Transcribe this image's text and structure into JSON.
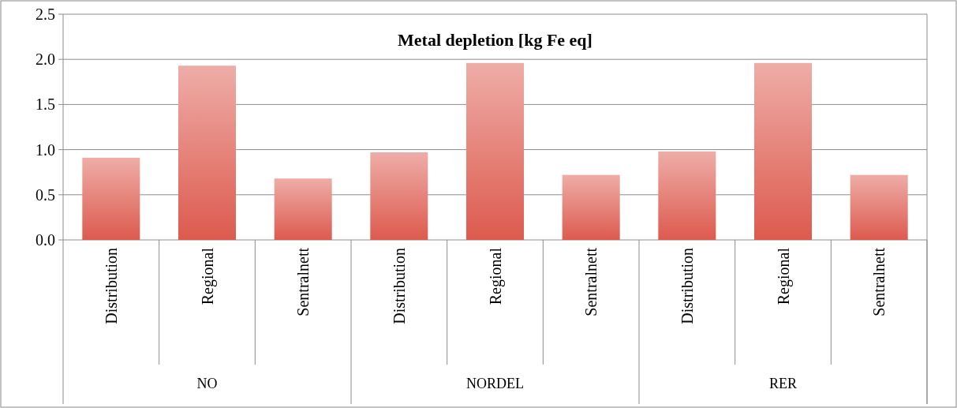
{
  "chart_data": {
    "type": "bar",
    "title": "Metal depletion [kg Fe eq]",
    "categories": [
      "Distribution",
      "Regional",
      "Sentralnett",
      "Distribution",
      "Regional",
      "Sentralnett",
      "Distribution",
      "Regional",
      "Sentralnett"
    ],
    "values": [
      0.91,
      1.93,
      0.68,
      0.97,
      1.96,
      0.72,
      0.98,
      1.96,
      0.72
    ],
    "color": "#dd5a4e",
    "ylim": [
      0,
      2.5
    ],
    "yticks": [
      {
        "value": 0,
        "label": "0.0"
      },
      {
        "value": 0.5,
        "label": "0.5"
      },
      {
        "value": 1,
        "label": "1.0"
      },
      {
        "value": 1.5,
        "label": "1.5"
      },
      {
        "value": 2,
        "label": "2.0"
      },
      {
        "value": 2.5,
        "label": "2.5"
      }
    ],
    "grid": "y",
    "annotations": [
      "NO",
      "NORDEL",
      "RER"
    ]
  }
}
